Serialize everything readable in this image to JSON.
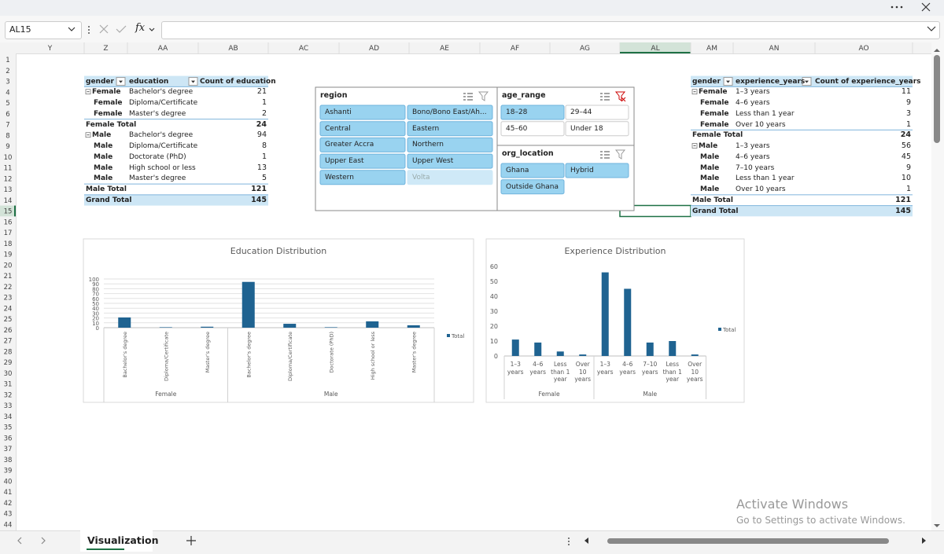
{
  "formula_bar": {
    "name_box": "AL15",
    "function": "fx"
  },
  "columns": [
    "Y",
    "Z",
    "AA",
    "AB",
    "AC",
    "AD",
    "AE",
    "AF",
    "AG",
    "AL",
    "AM",
    "AN",
    "AO"
  ],
  "active_column": "AL",
  "active_row": 15,
  "rows": [
    1,
    2,
    3,
    4,
    5,
    6,
    7,
    8,
    9,
    10,
    11,
    12,
    13,
    14,
    15,
    16,
    17,
    18,
    19,
    20,
    21,
    22,
    23,
    24,
    25,
    26,
    27,
    28,
    29,
    30,
    31,
    32,
    33,
    34,
    35,
    36,
    37,
    38,
    39,
    40,
    41,
    42,
    43,
    44
  ],
  "pivot_education": {
    "headers": [
      "gender",
      "education",
      "Count of education"
    ],
    "rows": [
      {
        "label": "Female",
        "item": "Bachelor's degree",
        "count": 21
      },
      {
        "label": "Female",
        "item": "Diploma/Certificate",
        "count": 1
      },
      {
        "label": "Female",
        "item": "Master's degree",
        "count": 2
      },
      {
        "total": "Female Total",
        "count": 24
      },
      {
        "label": "Male",
        "item": "Bachelor's degree",
        "count": 94
      },
      {
        "label": "Male",
        "item": "Diploma/Certificate",
        "count": 8
      },
      {
        "label": "Male",
        "item": "Doctorate (PhD)",
        "count": 1
      },
      {
        "label": "Male",
        "item": "High school or less",
        "count": 13
      },
      {
        "label": "Male",
        "item": "Master's degree",
        "count": 5
      },
      {
        "total": "Male Total",
        "count": 121
      }
    ],
    "grand_total": {
      "label": "Grand Total",
      "count": 145
    }
  },
  "pivot_experience": {
    "headers": [
      "gender",
      "experience_years",
      "Count of experience_years"
    ],
    "rows": [
      {
        "label": "Female",
        "item": "1–3 years",
        "count": 11
      },
      {
        "label": "Female",
        "item": "4–6 years",
        "count": 9
      },
      {
        "label": "Female",
        "item": "Less than 1 year",
        "count": 3
      },
      {
        "label": "Female",
        "item": "Over 10 years",
        "count": 1
      },
      {
        "total": "Female Total",
        "count": 24
      },
      {
        "label": "Male",
        "item": "1–3 years",
        "count": 56
      },
      {
        "label": "Male",
        "item": "4–6 years",
        "count": 45
      },
      {
        "label": "Male",
        "item": "7–10 years",
        "count": 9
      },
      {
        "label": "Male",
        "item": "Less than 1 year",
        "count": 10
      },
      {
        "label": "Male",
        "item": "Over 10 years",
        "count": 1
      },
      {
        "total": "Male Total",
        "count": 121
      }
    ],
    "grand_total": {
      "label": "Grand Total",
      "count": 145
    }
  },
  "slicers": [
    {
      "title": "region",
      "filter_active": false,
      "items": [
        {
          "label": "Ashanti",
          "state": "selected"
        },
        {
          "label": "Bono/Bono East/Ah...",
          "state": "selected"
        },
        {
          "label": "Central",
          "state": "selected"
        },
        {
          "label": "Eastern",
          "state": "selected"
        },
        {
          "label": "Greater Accra",
          "state": "selected"
        },
        {
          "label": "Northern",
          "state": "selected"
        },
        {
          "label": "Upper East",
          "state": "selected"
        },
        {
          "label": "Upper West",
          "state": "selected"
        },
        {
          "label": "Western",
          "state": "selected"
        },
        {
          "label": "Volta",
          "state": "nodata"
        }
      ]
    },
    {
      "title": "age_range",
      "filter_active": true,
      "items": [
        {
          "label": "18–28",
          "state": "selected"
        },
        {
          "label": "29–44",
          "state": "unselected"
        },
        {
          "label": "45–60",
          "state": "unselected"
        },
        {
          "label": "Under 18",
          "state": "unselected"
        }
      ]
    },
    {
      "title": "org_location",
      "filter_active": false,
      "items": [
        {
          "label": "Ghana",
          "state": "selected"
        },
        {
          "label": "Hybrid",
          "state": "selected"
        },
        {
          "label": "Outside Ghana",
          "state": "selected"
        }
      ]
    }
  ],
  "charts": [
    {
      "type": "bar",
      "title": "Education Distribution",
      "series_name": "Total",
      "color": "#1f6391",
      "groups": [
        {
          "name": "Female",
          "categories": [
            "Bachelor's degree",
            "Diploma/Certificate",
            "Master's degree"
          ],
          "values": [
            21,
            1,
            2
          ]
        },
        {
          "name": "Male",
          "categories": [
            "Bachelor's degree",
            "Diploma/Certificate",
            "Doctorate (PhD)",
            "High school or less",
            "Master's degree"
          ],
          "values": [
            94,
            8,
            1,
            13,
            5
          ]
        }
      ],
      "ylim": [
        0,
        100
      ],
      "yticks": [
        0,
        10,
        20,
        30,
        40,
        50,
        60,
        70,
        80,
        90,
        100
      ],
      "grid": true
    },
    {
      "type": "bar",
      "title": "Experience Distribution",
      "series_name": "Total",
      "color": "#1f6391",
      "groups": [
        {
          "name": "Female",
          "categories": [
            "1–3 years",
            "4–6 years",
            "Less than 1 year",
            "Over 10 years"
          ],
          "values": [
            11,
            9,
            3,
            1
          ]
        },
        {
          "name": "Male",
          "categories": [
            "1–3 years",
            "4–6 years",
            "7–10 years",
            "Less than 1 year",
            "Over 10 years"
          ],
          "values": [
            56,
            45,
            9,
            10,
            1
          ]
        }
      ],
      "ylim": [
        0,
        60
      ],
      "yticks": [
        0,
        10,
        20,
        30,
        40,
        50,
        60
      ],
      "grid": false
    }
  ],
  "sheet_tab": "Visualization",
  "watermark": {
    "title": "Activate Windows",
    "subtitle": "Go to Settings to activate Windows."
  }
}
